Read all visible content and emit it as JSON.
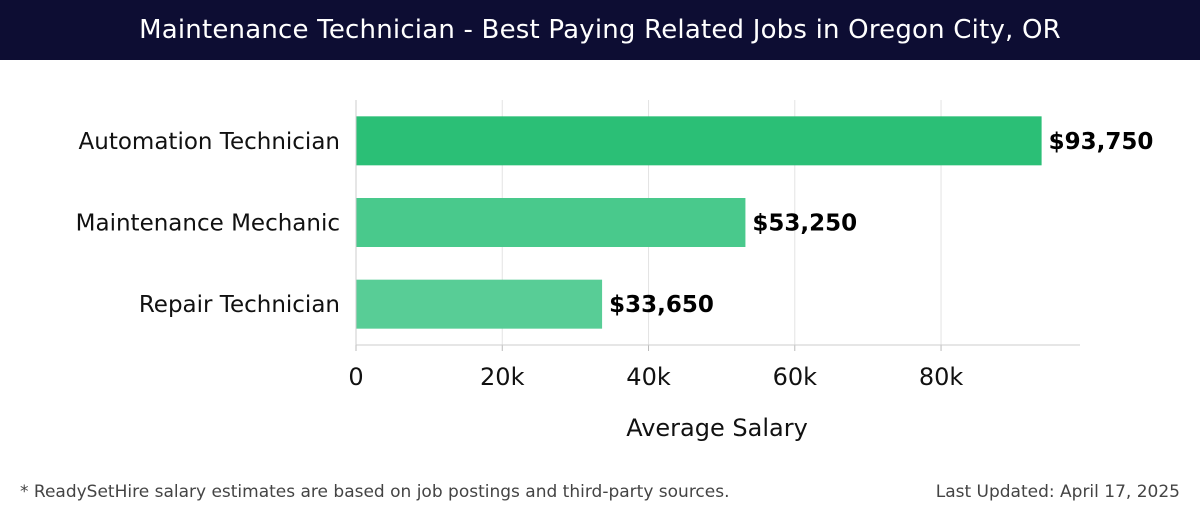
{
  "header": {
    "title": "Maintenance Technician - Best Paying Related Jobs in Oregon City, OR"
  },
  "chart_data": {
    "type": "bar",
    "orientation": "horizontal",
    "title": "Maintenance Technician - Best Paying Related Jobs in Oregon City, OR",
    "categories": [
      "Automation Technician",
      "Maintenance Mechanic",
      "Repair Technician"
    ],
    "values": [
      93750,
      53250,
      33650
    ],
    "value_labels": [
      "$93,750",
      "$53,250",
      "$33,650"
    ],
    "xlabel": "Average Salary",
    "ylabel": "",
    "xlim": [
      0,
      99000
    ],
    "xticks": [
      0,
      20000,
      40000,
      60000,
      80000
    ],
    "xtick_labels": [
      "0",
      "20k",
      "40k",
      "60k",
      "80k"
    ],
    "grid": true,
    "bar_colors": [
      "#2bbf76",
      "#49c98c",
      "#58cd96"
    ]
  },
  "footer": {
    "note": "* ReadySetHire salary estimates are based on job postings and third-party sources.",
    "updated": "Last Updated: April 17, 2025"
  }
}
